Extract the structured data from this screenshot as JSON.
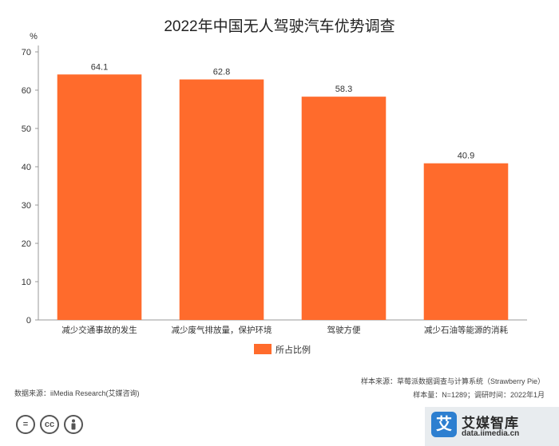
{
  "chart_data": {
    "type": "bar",
    "title": "2022年中国无人驾驶汽车优势调查",
    "ylabel": "%",
    "ylim": [
      0,
      70
    ],
    "yticks": [
      0,
      10,
      20,
      30,
      40,
      50,
      60,
      70
    ],
    "categories": [
      "减少交通事故的发生",
      "减少废气排放量，保护环境",
      "驾驶方便",
      "减少石油等能源的消耗"
    ],
    "series": [
      {
        "name": "所占比例",
        "values": [
          64.1,
          62.8,
          58.3,
          40.9
        ],
        "color": "#ff6b2c"
      }
    ],
    "legend_position": "bottom-center",
    "grid": false
  },
  "footer": {
    "data_source": "数据来源：iiMedia Research(艾媒咨询)",
    "sample_source": "样本来源：草莓派数据调查与计算系统（Strawberry Pie）",
    "sample_info": "样本量：N=1289；调研时间：2022年1月"
  },
  "license_icons": [
    "equals-icon",
    "cc-icon",
    "person-icon"
  ],
  "brand": {
    "logo_char": "艾",
    "name": "艾媒智库",
    "url": "data.iimedia.cn",
    "color": "#2d7fd0"
  }
}
